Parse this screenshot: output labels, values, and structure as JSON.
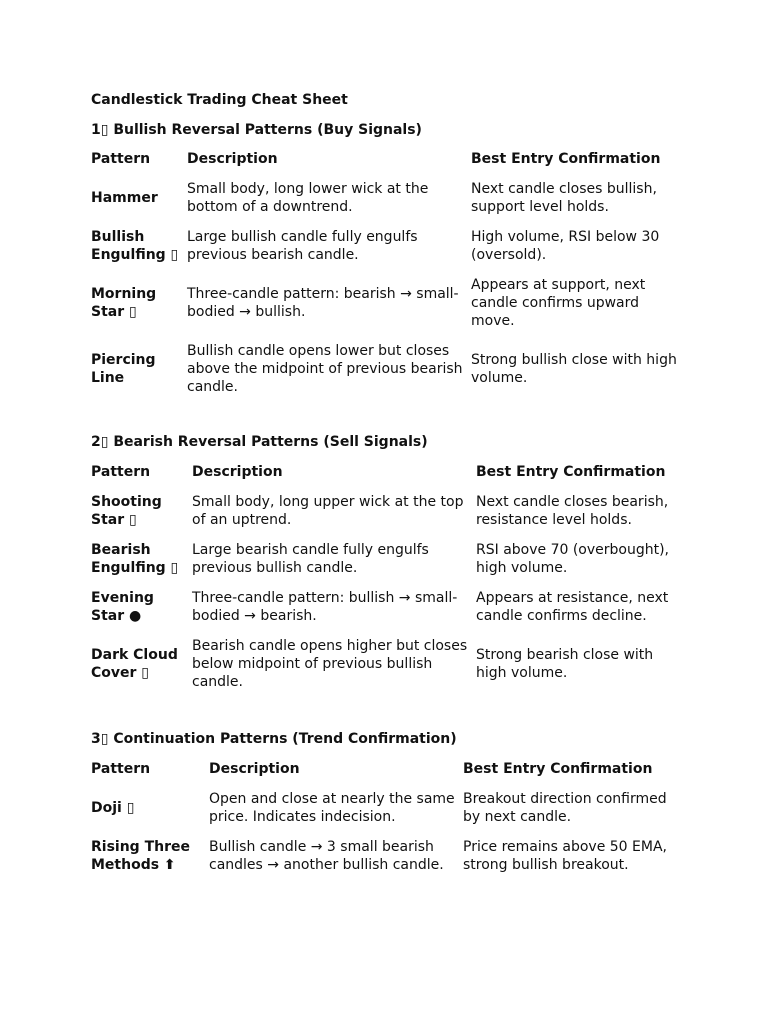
{
  "title": "Candlestick Trading Cheat Sheet",
  "columns": {
    "pattern": "Pattern",
    "description": "Description",
    "confirmation": "Best Entry Confirmation"
  },
  "sections": [
    {
      "heading": "1▯ Bullish Reversal Patterns (Buy Signals)",
      "rows": [
        {
          "pattern": "Hammer",
          "description": "Small body, long lower wick at the\nbottom of a downtrend.",
          "confirmation": "Next candle closes bullish,\nsupport level holds."
        },
        {
          "pattern": "Bullish\nEngulfing ▯",
          "description": "Large bullish candle fully engulfs\nprevious bearish candle.",
          "confirmation": "High volume, RSI below 30\n(oversold)."
        },
        {
          "pattern": "Morning\nStar ▯",
          "description": "Three-candle pattern: bearish → small-\nbodied → bullish.",
          "confirmation": "Appears at support, next\ncandle confirms upward\nmove."
        },
        {
          "pattern": "Piercing\nLine",
          "description": "Bullish candle opens lower but closes\nabove the midpoint of previous bearish\ncandle.",
          "confirmation": "Strong bullish close with high\nvolume."
        }
      ]
    },
    {
      "heading": "2▯ Bearish Reversal Patterns (Sell Signals)",
      "rows": [
        {
          "pattern": "Shooting\nStar ▯",
          "description": "Small body, long upper wick at the top\nof an uptrend.",
          "confirmation": "Next candle closes bearish,\nresistance level holds."
        },
        {
          "pattern": "Bearish\nEngulfing ▯",
          "description": "Large bearish candle fully engulfs\nprevious bullish candle.",
          "confirmation": "RSI above 70 (overbought),\nhigh volume."
        },
        {
          "pattern": "Evening\nStar ●",
          "description": "Three-candle pattern: bullish → small-\nbodied → bearish.",
          "confirmation": "Appears at resistance, next\ncandle confirms decline."
        },
        {
          "pattern": "Dark Cloud\nCover ▯",
          "description": "Bearish candle opens higher but closes\nbelow midpoint of previous bullish\ncandle.",
          "confirmation": "Strong bearish close with\nhigh volume."
        }
      ]
    },
    {
      "heading": "3▯ Continuation Patterns (Trend Confirmation)",
      "rows": [
        {
          "pattern": "Doji ▯",
          "description": "Open and close at nearly the same\nprice. Indicates indecision.",
          "confirmation": "Breakout direction confirmed\nby next candle."
        },
        {
          "pattern": "Rising Three\nMethods ⬆",
          "description": "Bullish candle → 3 small bearish\ncandles → another bullish candle.",
          "confirmation": "Price remains above 50 EMA,\nstrong bullish breakout."
        }
      ]
    }
  ]
}
